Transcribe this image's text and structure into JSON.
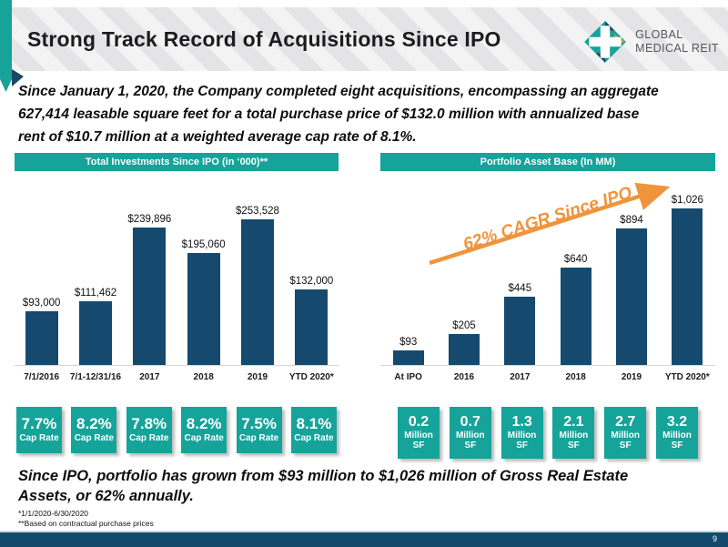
{
  "header": {
    "title": "Strong Track Record of Acquisitions Since IPO",
    "logo_line1": "GLOBAL",
    "logo_line2": "MEDICAL REIT"
  },
  "intro": {
    "line1": "Since January 1, 2020, the Company completed eight acquisitions, encompassing an aggregate",
    "line2": "627,414 leasable square feet for a total purchase price of $132.0 million with annualized base",
    "line3": "rent of $10.7 million at a weighted average cap rate of 8.1%."
  },
  "chart_data": [
    {
      "type": "bar",
      "title": "Total Investments Since IPO (in ‘000)**",
      "categories": [
        "7/1/2016",
        "7/1-12/31/16",
        "2017",
        "2018",
        "2019",
        "YTD 2020*"
      ],
      "values": [
        93000,
        111462,
        239896,
        195060,
        253528,
        132000
      ],
      "value_labels": [
        "$93,000",
        "$111,462",
        "$239,896",
        "$195,060",
        "$253,528",
        "$132,000"
      ],
      "ylim": [
        0,
        253528
      ],
      "bar_color": "#154a6e",
      "grid": false,
      "legend_position": "none"
    },
    {
      "type": "bar",
      "title": "Portfolio Asset Base (In MM)",
      "categories": [
        "At IPO",
        "2016",
        "2017",
        "2018",
        "2019",
        "YTD 2020*"
      ],
      "values": [
        93,
        205,
        445,
        640,
        894,
        1026
      ],
      "value_labels": [
        "$93",
        "$205",
        "$445",
        "$640",
        "$894",
        "$1,026"
      ],
      "ylim": [
        0,
        1026
      ],
      "bar_color": "#154a6e",
      "annotation": "62% CAGR Since IPO",
      "annotation_color": "#f0943c",
      "grid": false,
      "legend_position": "none"
    }
  ],
  "cap_rate_boxes": [
    {
      "value": "7.7%",
      "sub": [
        "Cap Rate"
      ]
    },
    {
      "value": "8.2%",
      "sub": [
        "Cap Rate"
      ]
    },
    {
      "value": "7.8%",
      "sub": [
        "Cap Rate"
      ]
    },
    {
      "value": "8.2%",
      "sub": [
        "Cap Rate"
      ]
    },
    {
      "value": "7.5%",
      "sub": [
        "Cap Rate"
      ]
    },
    {
      "value": "8.1%",
      "sub": [
        "Cap Rate"
      ]
    }
  ],
  "sf_boxes": [
    {
      "value": "0.2",
      "sub": [
        "Million",
        "SF"
      ]
    },
    {
      "value": "0.7",
      "sub": [
        "Million",
        "SF"
      ]
    },
    {
      "value": "1.3",
      "sub": [
        "Million",
        "SF"
      ]
    },
    {
      "value": "2.1",
      "sub": [
        "Million",
        "SF"
      ]
    },
    {
      "value": "2.7",
      "sub": [
        "Million",
        "SF"
      ]
    },
    {
      "value": "3.2",
      "sub": [
        "Million",
        "SF"
      ]
    }
  ],
  "summary": {
    "line1": "Since IPO, portfolio has grown from $93 million to $1,026 million of Gross Real Estate",
    "line2": "Assets, or 62% annually."
  },
  "footnotes": {
    "note1": "*1/1/2020-6/30/2020",
    "note2": "**Based on contractual purchase prices"
  },
  "footer": {
    "page_number": "9"
  },
  "colors": {
    "teal": "#15a39a",
    "navy": "#154a6e",
    "orange": "#f0943c",
    "header_gray": "#e9e9ea"
  }
}
